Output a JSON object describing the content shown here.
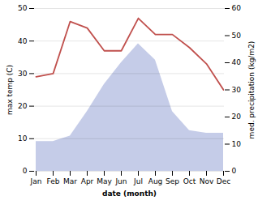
{
  "chart_data": {
    "type": "line",
    "xlabel": "date (month)",
    "ylabel": "max temp (C)",
    "y2label": "med. precipitation (kg/m2)",
    "categories": [
      "Jan",
      "Feb",
      "Mar",
      "Apr",
      "May",
      "Jun",
      "Jul",
      "Aug",
      "Sep",
      "Oct",
      "Nov",
      "Dec"
    ],
    "series": [
      {
        "type": "area",
        "axis": "y2",
        "color": "#c5cce8",
        "values": [
          11,
          11,
          13,
          22,
          32,
          40,
          47,
          41,
          22,
          15,
          14,
          14
        ]
      },
      {
        "type": "line",
        "color": "#c0504d",
        "values": [
          29,
          30,
          46,
          44,
          37,
          37,
          47,
          42,
          42,
          38,
          33,
          25
        ]
      }
    ],
    "ylim": [
      0,
      50
    ],
    "yticks": [
      0,
      10,
      20,
      30,
      40,
      50
    ],
    "y2lim": [
      0,
      60
    ],
    "y2ticks": [
      0,
      10,
      20,
      30,
      40,
      50,
      60
    ],
    "grid": true
  }
}
